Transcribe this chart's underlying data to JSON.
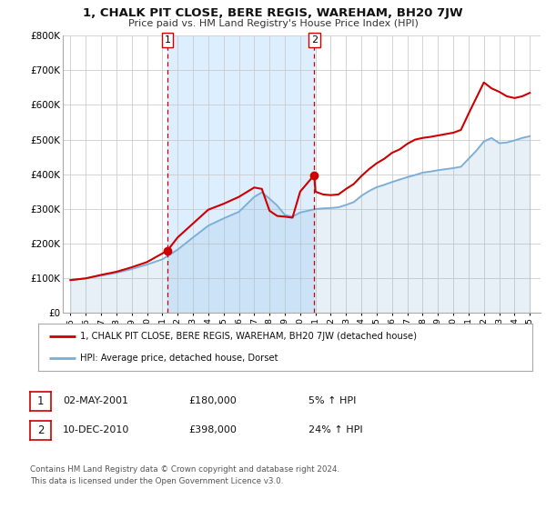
{
  "title": "1, CHALK PIT CLOSE, BERE REGIS, WAREHAM, BH20 7JW",
  "subtitle": "Price paid vs. HM Land Registry's House Price Index (HPI)",
  "legend_line1": "1, CHALK PIT CLOSE, BERE REGIS, WAREHAM, BH20 7JW (detached house)",
  "legend_line2": "HPI: Average price, detached house, Dorset",
  "sale1_label": "1",
  "sale1_date": "02-MAY-2001",
  "sale1_price": "£180,000",
  "sale1_hpi": "5% ↑ HPI",
  "sale2_label": "2",
  "sale2_date": "10-DEC-2010",
  "sale2_price": "£398,000",
  "sale2_hpi": "24% ↑ HPI",
  "footnote1": "Contains HM Land Registry data © Crown copyright and database right 2024.",
  "footnote2": "This data is licensed under the Open Government Licence v3.0.",
  "price_line_color": "#cc0000",
  "hpi_line_color": "#7aaed6",
  "shade_color": "#ddeeff",
  "marker_color": "#cc0000",
  "vline_color": "#cc0000",
  "grid_color": "#cccccc",
  "bg_color": "#ffffff",
  "box_edge_color": "#cc0000",
  "sale1_x": 2001.33,
  "sale1_y": 180000,
  "sale2_x": 2010.92,
  "sale2_y": 398000,
  "ylim": [
    0,
    800000
  ],
  "yticks": [
    0,
    100000,
    200000,
    300000,
    400000,
    500000,
    600000,
    700000,
    800000
  ],
  "ytick_labels": [
    "£0",
    "£100K",
    "£200K",
    "£300K",
    "£400K",
    "£500K",
    "£600K",
    "£700K",
    "£800K"
  ],
  "xticks": [
    1995,
    1996,
    1997,
    1998,
    1999,
    2000,
    2001,
    2002,
    2003,
    2004,
    2005,
    2006,
    2007,
    2008,
    2009,
    2010,
    2011,
    2012,
    2013,
    2014,
    2015,
    2016,
    2017,
    2018,
    2019,
    2020,
    2021,
    2022,
    2023,
    2024,
    2025
  ],
  "xlim_start": 1994.5,
  "xlim_end": 2025.7,
  "hpi_x": [
    1995,
    1996,
    1997,
    1998,
    1999,
    2000,
    2001,
    2002,
    2003,
    2004,
    2005,
    2006,
    2007,
    2007.5,
    2008,
    2008.5,
    2009,
    2009.5,
    2010,
    2010.5,
    2011,
    2011.5,
    2012,
    2012.5,
    2013,
    2013.5,
    2014,
    2014.5,
    2015,
    2015.5,
    2016,
    2016.5,
    2017,
    2017.5,
    2018,
    2018.5,
    2019,
    2019.5,
    2020,
    2020.5,
    2021,
    2021.5,
    2022,
    2022.5,
    2023,
    2023.5,
    2024,
    2024.5,
    2025
  ],
  "hpi_y": [
    95000,
    100000,
    108000,
    116000,
    127000,
    140000,
    155000,
    183000,
    218000,
    252000,
    273000,
    292000,
    335000,
    348000,
    330000,
    310000,
    283000,
    278000,
    290000,
    295000,
    300000,
    302000,
    303000,
    305000,
    312000,
    320000,
    338000,
    352000,
    363000,
    370000,
    378000,
    385000,
    392000,
    398000,
    405000,
    408000,
    412000,
    415000,
    418000,
    422000,
    445000,
    468000,
    495000,
    505000,
    490000,
    492000,
    498000,
    505000,
    510000
  ],
  "price_x": [
    1995,
    1996,
    1997,
    1998,
    1999,
    2000,
    2001.33,
    2002,
    2003,
    2004,
    2005,
    2006,
    2007,
    2007.5,
    2008,
    2008.5,
    2009,
    2009.5,
    2010,
    2010.92,
    2011,
    2011.5,
    2012,
    2012.5,
    2013,
    2013.5,
    2014,
    2014.5,
    2015,
    2015.5,
    2016,
    2016.5,
    2017,
    2017.5,
    2018,
    2018.5,
    2019,
    2019.5,
    2020,
    2020.5,
    2021,
    2021.5,
    2022,
    2022.5,
    2023,
    2023.5,
    2024,
    2024.5,
    2025
  ],
  "price_y": [
    95000,
    100000,
    110000,
    119000,
    132000,
    147000,
    180000,
    218000,
    258000,
    298000,
    315000,
    335000,
    362000,
    358000,
    295000,
    280000,
    278000,
    275000,
    350000,
    398000,
    350000,
    342000,
    340000,
    342000,
    358000,
    372000,
    395000,
    415000,
    432000,
    445000,
    462000,
    472000,
    488000,
    500000,
    505000,
    508000,
    512000,
    516000,
    520000,
    528000,
    575000,
    620000,
    665000,
    648000,
    638000,
    625000,
    620000,
    625000,
    635000
  ]
}
